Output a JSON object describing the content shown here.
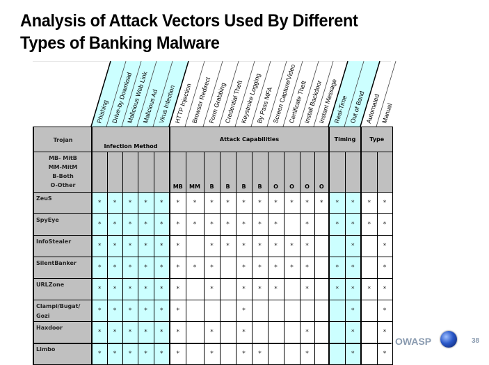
{
  "slide": {
    "title": "Analysis of Attack Vectors Used By Different Types of Banking Malware",
    "title_line1": "Analysis of Attack Vectors Used By Different",
    "title_line2": "Types of Banking Malware",
    "footer_brand": "OWASP",
    "page_number": "38"
  },
  "colors": {
    "cyan": "#ccffff",
    "gray": "#c0c0c0",
    "footer": "#8a9bb0"
  },
  "table": {
    "rotated_headers": [
      "Phishing",
      "Drive-by Download",
      "Malicious Web Link",
      "Malicious Ad",
      "Virus Infection",
      "HTTP Injection",
      "Browser Redirect",
      "Form Grabbing",
      "Credential Theft",
      "Keystroke Logging",
      "By Pass MFA",
      "Screen Capture/Video",
      "Certificate Theft",
      "Install Backdoor",
      "Instant Message",
      "Real-Time",
      "Out of Band",
      "Automated",
      "Manual"
    ],
    "corner_label": "Trojan",
    "legend": [
      "MB- MitB",
      "MM-MitM",
      "B-Both",
      "O-Other"
    ],
    "groups": {
      "infection": "Infection Method",
      "attack": "Attack Capabilities",
      "timing": "Timing",
      "type": "Type"
    },
    "attack_codes": [
      "MB",
      "MM",
      "B",
      "B",
      "B",
      "B",
      "O",
      "O",
      "O",
      "O"
    ],
    "mark": "*",
    "rows": [
      {
        "name": "ZeuS",
        "cells": [
          1,
          1,
          1,
          1,
          1,
          1,
          1,
          1,
          1,
          1,
          1,
          1,
          1,
          1,
          1,
          1,
          1,
          1,
          1
        ]
      },
      {
        "name": "SpyEye",
        "cells": [
          1,
          1,
          1,
          1,
          1,
          1,
          1,
          1,
          1,
          1,
          1,
          1,
          0,
          1,
          0,
          1,
          1,
          1,
          1
        ]
      },
      {
        "name": "InfoStealer",
        "cells": [
          1,
          1,
          1,
          1,
          1,
          1,
          0,
          1,
          1,
          1,
          1,
          1,
          1,
          1,
          0,
          0,
          1,
          0,
          1
        ]
      },
      {
        "name": "SilentBanker",
        "cells": [
          1,
          1,
          1,
          1,
          1,
          1,
          1,
          1,
          0,
          1,
          1,
          1,
          1,
          1,
          0,
          1,
          1,
          0,
          1
        ]
      },
      {
        "name": "URLZone",
        "cells": [
          1,
          1,
          1,
          1,
          1,
          1,
          0,
          1,
          0,
          1,
          1,
          1,
          0,
          1,
          0,
          1,
          1,
          1,
          1
        ]
      },
      {
        "name": "Clampi/Bugat/ Gozi",
        "cells": [
          1,
          1,
          1,
          1,
          1,
          1,
          0,
          0,
          0,
          1,
          0,
          0,
          0,
          0,
          0,
          0,
          1,
          0,
          1
        ]
      },
      {
        "name": "Haxdoor",
        "cells": [
          1,
          1,
          1,
          1,
          1,
          1,
          0,
          1,
          0,
          1,
          0,
          0,
          0,
          1,
          0,
          0,
          1,
          0,
          1
        ]
      },
      {
        "name": "Limbo",
        "cells": [
          1,
          1,
          1,
          1,
          1,
          1,
          0,
          1,
          0,
          1,
          1,
          0,
          0,
          1,
          0,
          0,
          1,
          0,
          1
        ]
      }
    ]
  }
}
